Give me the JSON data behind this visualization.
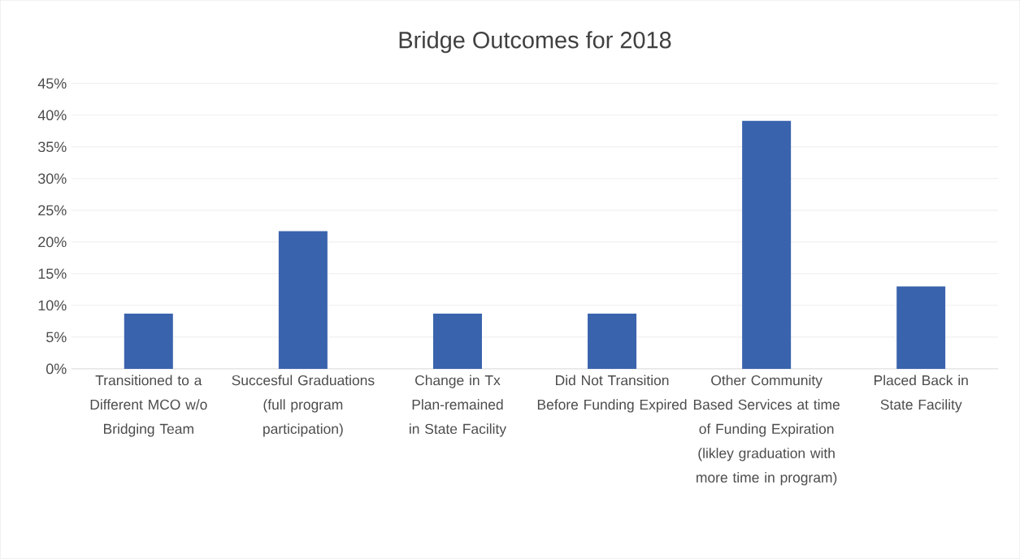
{
  "chart_data": {
    "type": "bar",
    "title": "Bridge Outcomes for 2018",
    "categories": [
      "Transitioned to a Different MCO w/o Bridging Team",
      "Succesful Graduations (full program participation)",
      "Change in Tx Plan-remained in State Facility",
      "Did Not Transition Before Funding Expired",
      "Other Community Based Services at time of Funding Expiration (likley graduation with more time in program)",
      "Placed Back in State Facility"
    ],
    "values": [
      8.7,
      21.7,
      8.7,
      8.7,
      39.1,
      13.0
    ],
    "color": "#3a63ad",
    "ylim": [
      0,
      45
    ],
    "yticks": [
      {
        "value": 0,
        "label": "0%"
      },
      {
        "value": 5,
        "label": "5%"
      },
      {
        "value": 10,
        "label": "10%"
      },
      {
        "value": 15,
        "label": "15%"
      },
      {
        "value": 20,
        "label": "20%"
      },
      {
        "value": 25,
        "label": "25%"
      },
      {
        "value": 30,
        "label": "30%"
      },
      {
        "value": 35,
        "label": "35%"
      },
      {
        "value": 40,
        "label": "40%"
      },
      {
        "value": 45,
        "label": "45%"
      }
    ],
    "grid": "y"
  }
}
